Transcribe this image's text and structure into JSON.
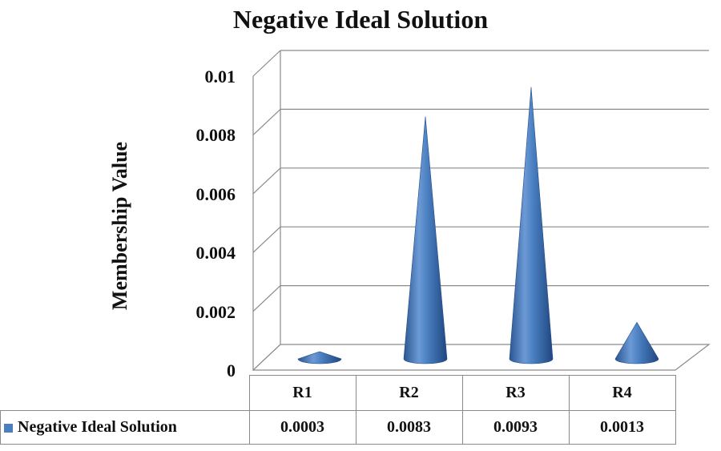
{
  "chart_data": {
    "type": "bar",
    "bar_shape": "3d-cone",
    "title": "Negative Ideal Solution",
    "ylabel": "Membership Value",
    "xlabel": "",
    "categories": [
      "R1",
      "R2",
      "R3",
      "R4"
    ],
    "series": [
      {
        "name": "Negative Ideal Solution",
        "values": [
          0.0003,
          0.0083,
          0.0093,
          0.0013
        ]
      }
    ],
    "ylim": [
      0,
      0.01
    ],
    "yticks": [
      "0",
      "0.002",
      "0.004",
      "0.006",
      "0.008",
      "0.01"
    ],
    "value_labels": [
      "0.0003",
      "0.0083",
      "0.0093",
      "0.0013"
    ],
    "grid": true,
    "legend": "data-table",
    "colors": {
      "series": "#4a7fc0",
      "grid": "#8a8a8a"
    }
  }
}
